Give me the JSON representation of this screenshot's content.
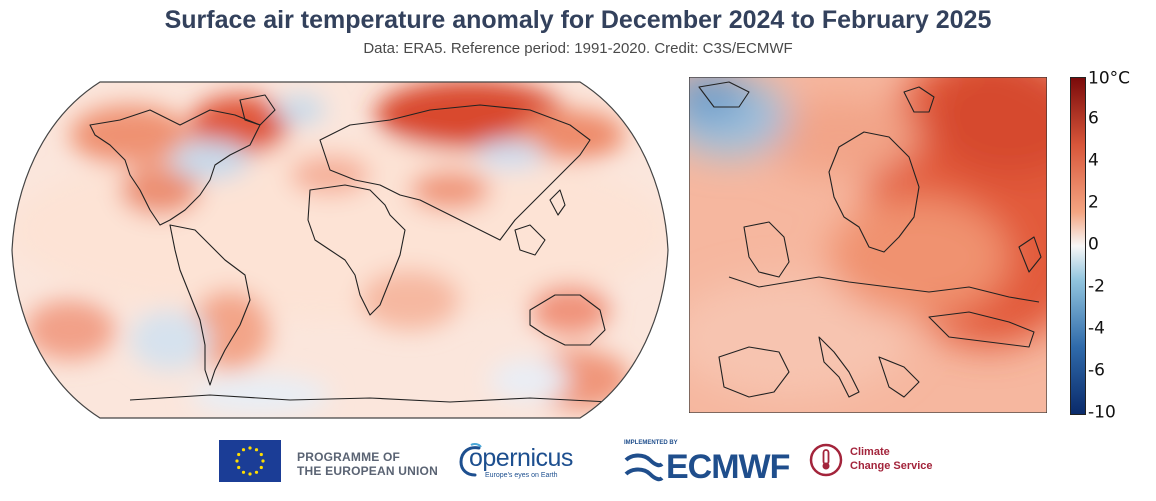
{
  "header": {
    "title": "Surface air temperature anomaly for December 2024 to February 2025",
    "subtitle": "Data: ERA5.  Reference period: 1991-2020.  Credit: C3S/ECMWF"
  },
  "colorbar": {
    "unit": "10°C",
    "ticks": [
      "6",
      "4",
      "2",
      "0",
      "-2",
      "-4",
      "-6",
      "-10"
    ],
    "range": [
      -10,
      10
    ],
    "colors": {
      "max": "#7a0a0a",
      "hot": "#d8563a",
      "warm": "#f4a582",
      "neutral": "#f7f7f7",
      "cool": "#92c5de",
      "cold": "#2f6aaa",
      "min": "#0a2a6a"
    }
  },
  "maps": {
    "world": {
      "projection": "Robinson",
      "outline_color": "#555555"
    },
    "europe": {
      "region": "Europe"
    }
  },
  "footer": {
    "eu_line1": "PROGRAMME OF",
    "eu_line2": "THE EUROPEAN UNION",
    "copernicus_word": "opernicus",
    "copernicus_tagline": "Europe's eyes on Earth",
    "ecmwf_implemented": "IMPLEMENTED BY",
    "ecmwf_word": "ECMWF",
    "c3s_line1": "Climate",
    "c3s_line2": "Change Service"
  }
}
